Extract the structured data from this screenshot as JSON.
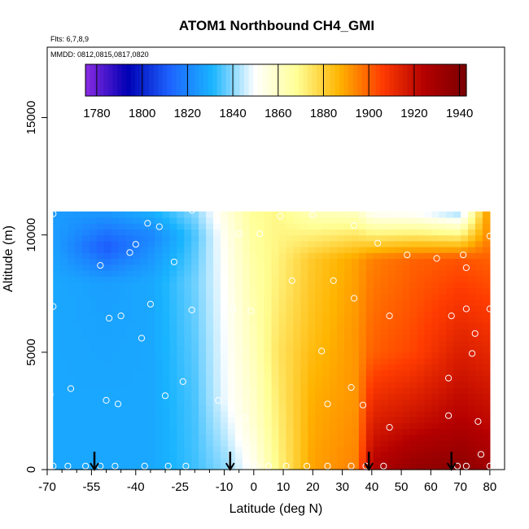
{
  "chart_data": {
    "type": "heatmap",
    "title": "ATOM1 Northbound CH4_GMI",
    "annotations": [
      "Flts: 6,7,8,9",
      "MMDD: 0812,0815,0817,0820"
    ],
    "xlabel": "Latitude (deg N)",
    "ylabel": "Altitude (m)",
    "xlim": [
      -70,
      85
    ],
    "ylim": [
      0,
      18000
    ],
    "x_ticks": [
      "-70",
      "-55",
      "-40",
      "-25",
      "-10",
      "0",
      "10",
      "20",
      "30",
      "40",
      "50",
      "60",
      "70",
      "80"
    ],
    "y_ticks": [
      "0",
      "5000",
      "10000",
      "15000"
    ],
    "colorbar": {
      "ticks": [
        "1780",
        "1800",
        "1820",
        "1840",
        "1860",
        "1880",
        "1900",
        "1920",
        "1940"
      ],
      "range": [
        1775,
        1943
      ],
      "colors": [
        "#8a2be2",
        "#0000b4",
        "#1e64ff",
        "#19b4ff",
        "#ffffff",
        "#ffff96",
        "#ffb400",
        "#ff3c00",
        "#b40000",
        "#7a0000"
      ]
    },
    "value_field": {
      "description": "CH4 mixing ratio (ppb) over latitude and altitude",
      "x_edges": [
        -68,
        80
      ],
      "z_top": 11000,
      "columns": [
        {
          "lat": -68,
          "values_by_alt": [
            [
              0,
              1828
            ],
            [
              3000,
              1828
            ],
            [
              8000,
              1828
            ],
            [
              10000,
              1826
            ],
            [
              11000,
              1825
            ]
          ]
        },
        {
          "lat": -50,
          "values_by_alt": [
            [
              0,
              1828
            ],
            [
              3000,
              1828
            ],
            [
              8000,
              1826
            ],
            [
              9500,
              1810
            ],
            [
              11000,
              1825
            ]
          ]
        },
        {
          "lat": -35,
          "values_by_alt": [
            [
              0,
              1828
            ],
            [
              3000,
              1828
            ],
            [
              8000,
              1828
            ],
            [
              10000,
              1820
            ],
            [
              11000,
              1830
            ]
          ]
        },
        {
          "lat": -20,
          "values_by_alt": [
            [
              0,
              1834
            ],
            [
              3000,
              1835
            ],
            [
              8000,
              1838
            ],
            [
              10000,
              1835
            ],
            [
              11000,
              1840
            ]
          ]
        },
        {
          "lat": -10,
          "values_by_alt": [
            [
              0,
              1840
            ],
            [
              3000,
              1848
            ],
            [
              8000,
              1850
            ],
            [
              10000,
              1852
            ],
            [
              11000,
              1855
            ]
          ]
        },
        {
          "lat": 0,
          "values_by_alt": [
            [
              0,
              1852
            ],
            [
              2000,
              1858
            ],
            [
              5000,
              1862
            ],
            [
              8000,
              1865
            ],
            [
              11000,
              1868
            ]
          ]
        },
        {
          "lat": 8,
          "values_by_alt": [
            [
              0,
              1870
            ],
            [
              2000,
              1872
            ],
            [
              5000,
              1875
            ],
            [
              8000,
              1872
            ],
            [
              11000,
              1870
            ]
          ]
        },
        {
          "lat": 20,
          "values_by_alt": [
            [
              0,
              1890
            ],
            [
              3000,
              1888
            ],
            [
              6000,
              1884
            ],
            [
              9000,
              1882
            ],
            [
              11000,
              1862
            ]
          ]
        },
        {
          "lat": 35,
          "values_by_alt": [
            [
              0,
              1895
            ],
            [
              3000,
              1892
            ],
            [
              6000,
              1892
            ],
            [
              9000,
              1890
            ],
            [
              11000,
              1860
            ]
          ]
        },
        {
          "lat": 40,
          "values_by_alt": [
            [
              0,
              1925
            ],
            [
              2000,
              1915
            ],
            [
              5000,
              1900
            ],
            [
              9000,
              1895
            ],
            [
              11000,
              1850
            ]
          ]
        },
        {
          "lat": 55,
          "values_by_alt": [
            [
              0,
              1935
            ],
            [
              2000,
              1920
            ],
            [
              5000,
              1905
            ],
            [
              9000,
              1900
            ],
            [
              11000,
              1848
            ]
          ]
        },
        {
          "lat": 70,
          "values_by_alt": [
            [
              0,
              1938
            ],
            [
              2000,
              1925
            ],
            [
              5000,
              1915
            ],
            [
              9000,
              1902
            ],
            [
              11000,
              1840
            ]
          ]
        },
        {
          "lat": 80,
          "values_by_alt": [
            [
              0,
              1930
            ],
            [
              2000,
              1922
            ],
            [
              5000,
              1912
            ],
            [
              9000,
              1900
            ],
            [
              10000,
              1895
            ]
          ]
        }
      ]
    },
    "sample_points": [
      {
        "lat": -68,
        "alt": 150
      },
      {
        "lat": -63,
        "alt": 150
      },
      {
        "lat": -57,
        "alt": 150
      },
      {
        "lat": -52,
        "alt": 150
      },
      {
        "lat": -47,
        "alt": 150
      },
      {
        "lat": -37,
        "alt": 150
      },
      {
        "lat": -29,
        "alt": 150
      },
      {
        "lat": -23,
        "alt": 150
      },
      {
        "lat": 1,
        "alt": 150
      },
      {
        "lat": 5,
        "alt": 150
      },
      {
        "lat": 11,
        "alt": 150
      },
      {
        "lat": 18,
        "alt": 150
      },
      {
        "lat": 25,
        "alt": 150
      },
      {
        "lat": 33,
        "alt": 150
      },
      {
        "lat": 38,
        "alt": 150
      },
      {
        "lat": 44,
        "alt": 150
      },
      {
        "lat": 69,
        "alt": 150
      },
      {
        "lat": 72,
        "alt": 150
      },
      {
        "lat": 80,
        "alt": 150
      },
      {
        "lat": -69,
        "alt": 3200
      },
      {
        "lat": -62,
        "alt": 3450
      },
      {
        "lat": -50,
        "alt": 2950
      },
      {
        "lat": -46,
        "alt": 2800
      },
      {
        "lat": -30,
        "alt": 3150
      },
      {
        "lat": -24,
        "alt": 3750
      },
      {
        "lat": -12,
        "alt": 2950
      },
      {
        "lat": -3,
        "alt": 2200
      },
      {
        "lat": 25,
        "alt": 2800
      },
      {
        "lat": 33,
        "alt": 3500
      },
      {
        "lat": 37,
        "alt": 2750
      },
      {
        "lat": 46,
        "alt": 1800
      },
      {
        "lat": 66,
        "alt": 2300
      },
      {
        "lat": 66,
        "alt": 3900
      },
      {
        "lat": 76,
        "alt": 2050
      },
      {
        "lat": 77,
        "alt": 650
      },
      {
        "lat": -68,
        "alt": 6950
      },
      {
        "lat": -49,
        "alt": 6450
      },
      {
        "lat": -45,
        "alt": 6550
      },
      {
        "lat": -38,
        "alt": 5600
      },
      {
        "lat": -35,
        "alt": 7050
      },
      {
        "lat": -21,
        "alt": 6800
      },
      {
        "lat": -7,
        "alt": 6850
      },
      {
        "lat": -1,
        "alt": 6750
      },
      {
        "lat": 23,
        "alt": 5050
      },
      {
        "lat": 34,
        "alt": 7300
      },
      {
        "lat": 46,
        "alt": 6550
      },
      {
        "lat": 67,
        "alt": 6550
      },
      {
        "lat": 72,
        "alt": 6850
      },
      {
        "lat": 75,
        "alt": 5800
      },
      {
        "lat": 74,
        "alt": 4950
      },
      {
        "lat": 80,
        "alt": 6850
      },
      {
        "lat": -52,
        "alt": 8700
      },
      {
        "lat": -42,
        "alt": 9250
      },
      {
        "lat": -40,
        "alt": 9600
      },
      {
        "lat": -27,
        "alt": 8850
      },
      {
        "lat": 13,
        "alt": 8050
      },
      {
        "lat": 27,
        "alt": 8050
      },
      {
        "lat": 52,
        "alt": 9150
      },
      {
        "lat": 62,
        "alt": 9000
      },
      {
        "lat": 71,
        "alt": 9150
      },
      {
        "lat": 72,
        "alt": 8600
      },
      {
        "lat": 80,
        "alt": 9950
      },
      {
        "lat": -68,
        "alt": 10900
      },
      {
        "lat": -36,
        "alt": 10500
      },
      {
        "lat": -32,
        "alt": 10350
      },
      {
        "lat": -21,
        "alt": 11050
      },
      {
        "lat": -15,
        "alt": 11150
      },
      {
        "lat": -5,
        "alt": 10050
      },
      {
        "lat": 2,
        "alt": 10050
      },
      {
        "lat": 9,
        "alt": 10800
      },
      {
        "lat": 20,
        "alt": 10850
      },
      {
        "lat": 34,
        "alt": 10400
      },
      {
        "lat": 42,
        "alt": 9650
      },
      {
        "lat": 72,
        "alt": 11150
      }
    ],
    "arrows_lat": [
      -54,
      -8,
      39,
      67
    ]
  }
}
